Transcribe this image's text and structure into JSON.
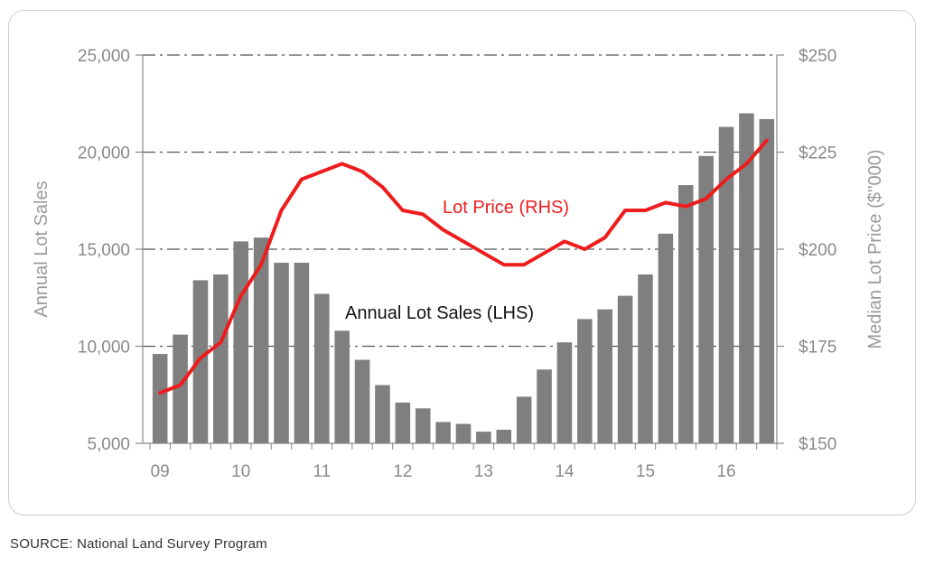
{
  "chart_data": {
    "type": "bar",
    "x_tick_labels": [
      "09",
      "10",
      "11",
      "12",
      "13",
      "14",
      "15",
      "16"
    ],
    "left_axis": {
      "label": "Annual Lot Sales",
      "range": [
        5000,
        25000
      ],
      "ticks": [
        5000,
        10000,
        15000,
        20000,
        25000
      ],
      "tick_labels": [
        "5,000",
        "10,000",
        "15,000",
        "20,000",
        "25,000"
      ]
    },
    "right_axis": {
      "label": "Median Lot Price ($''000)",
      "range": [
        150,
        250
      ],
      "ticks": [
        150,
        175,
        200,
        225,
        250
      ],
      "tick_labels": [
        "$150",
        "$175",
        "$200",
        "$225",
        "$250"
      ]
    },
    "grid": "horizontal dash-dot",
    "series": [
      {
        "name": "Annual Lot Sales (LHS)",
        "type": "bar",
        "axis": "left",
        "color": "#7f7f7f",
        "values": [
          9600,
          10600,
          13400,
          13700,
          15400,
          15600,
          14300,
          14300,
          12700,
          10800,
          9300,
          8000,
          7100,
          6800,
          6100,
          6000,
          5600,
          5700,
          7400,
          8800,
          10200,
          11400,
          11900,
          12600,
          13700,
          15800,
          18300,
          19800,
          21300,
          22000,
          21700
        ]
      },
      {
        "name": "Lot Price (RHS)",
        "type": "line",
        "axis": "right",
        "color": "#ee1c1c",
        "values": [
          163,
          165,
          172,
          176,
          188,
          196,
          210,
          218,
          220,
          222,
          220,
          216,
          210,
          209,
          205,
          202,
          199,
          196,
          196,
          199,
          202,
          200,
          203,
          210,
          210,
          212,
          211,
          213,
          218,
          222,
          228
        ]
      }
    ]
  },
  "footer": {
    "source": "SOURCE: National Land Survey Program"
  }
}
